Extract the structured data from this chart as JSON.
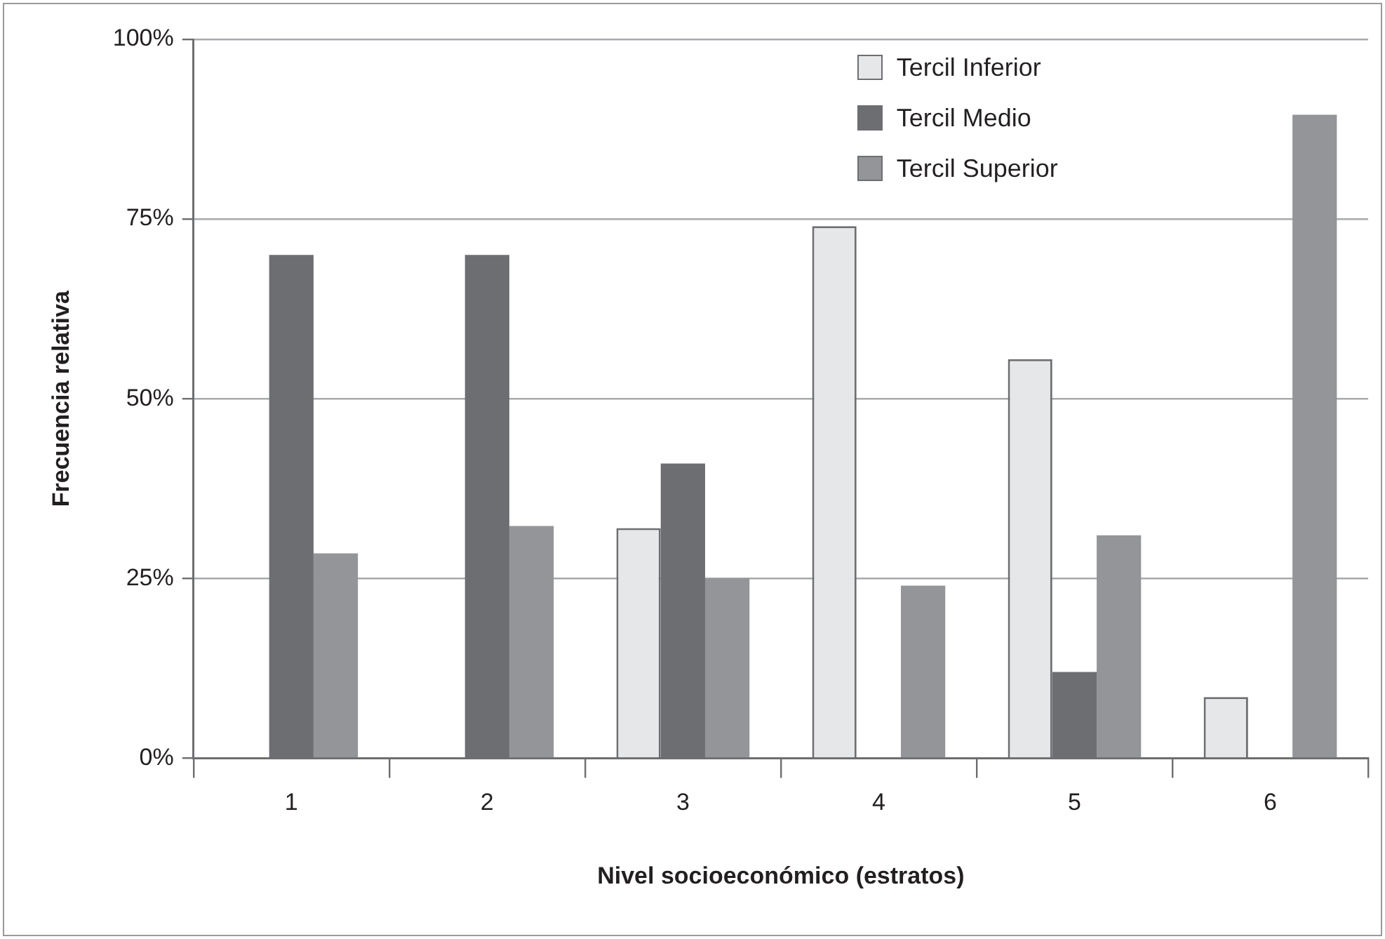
{
  "chart_data": {
    "type": "bar",
    "xlabel": "Nivel socioeconómico (estratos)",
    "ylabel": "Frecuencia relativa",
    "categories": [
      "1",
      "2",
      "3",
      "4",
      "5",
      "6"
    ],
    "series": [
      {
        "name": "Tercil Inferior",
        "color": "#e6e7e8",
        "values": [
          0,
          0,
          32,
          74,
          55.5,
          8.5
        ]
      },
      {
        "name": "Tercil Medio",
        "color": "#6d6e71",
        "values": [
          70,
          70,
          41,
          0,
          12,
          0
        ]
      },
      {
        "name": "Tercil Superior",
        "color": "#939598",
        "values": [
          28.5,
          32.3,
          25,
          24,
          31,
          89.5
        ]
      }
    ],
    "ylim": [
      0,
      100
    ],
    "yticks": [
      {
        "value": 0,
        "label": "0%"
      },
      {
        "value": 25,
        "label": "25%"
      },
      {
        "value": 50,
        "label": "50%"
      },
      {
        "value": 75,
        "label": "75%"
      },
      {
        "value": 100,
        "label": "100%"
      }
    ],
    "grid": "y",
    "legend": "top right"
  }
}
